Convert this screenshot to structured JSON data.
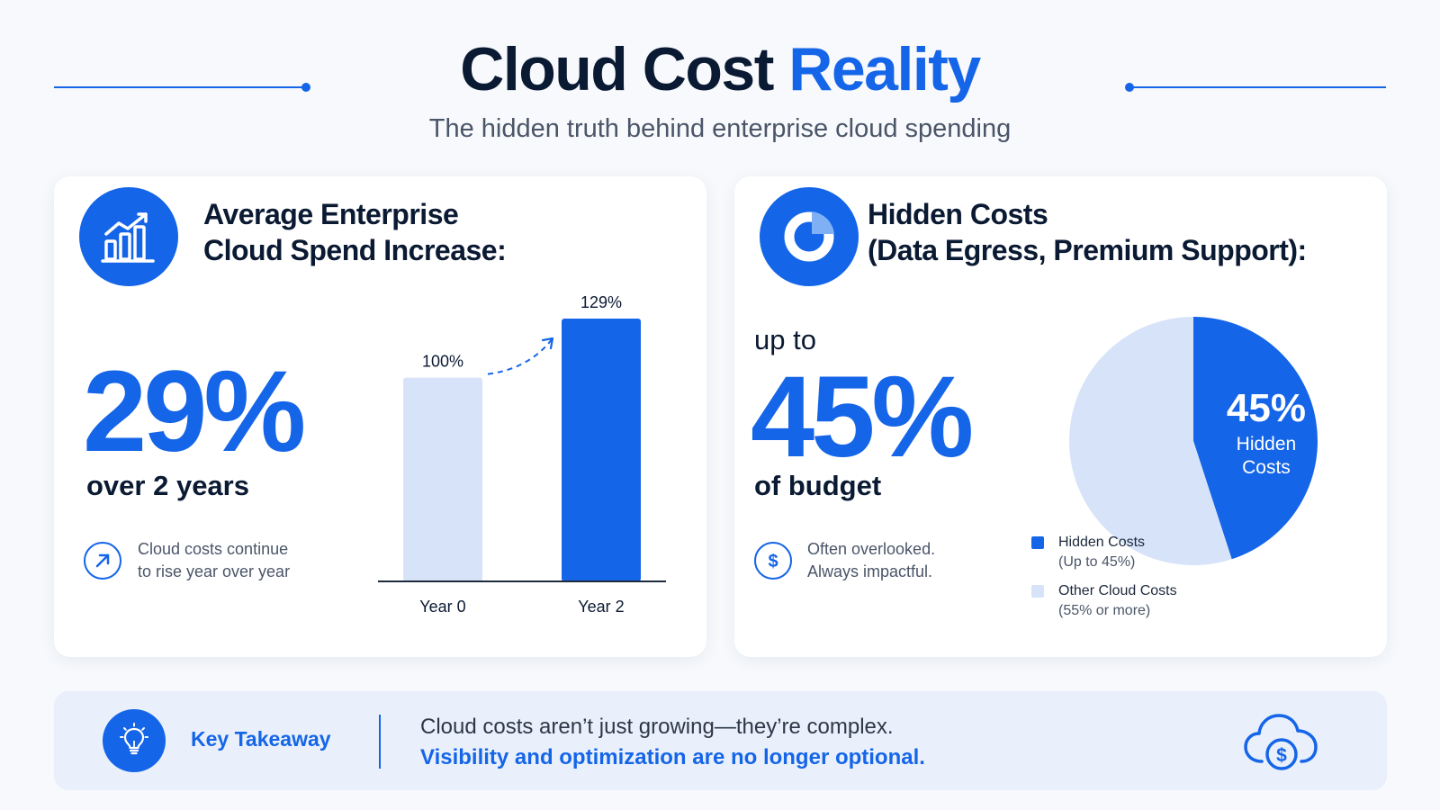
{
  "header": {
    "title_main": "Cloud Cost ",
    "title_accent": "Reality",
    "subtitle": "The hidden truth behind enterprise cloud spending"
  },
  "left_card": {
    "icon": "bar-chart-growth-icon",
    "title_line1": "Average Enterprise",
    "title_line2": "Cloud Spend Increase:",
    "big_value": "29%",
    "big_sub": "over 2 years",
    "note_icon": "arrow-up-right-icon",
    "note_line1": "Cloud costs continue",
    "note_line2": "to rise year over year"
  },
  "right_card": {
    "icon": "pie-chart-icon",
    "title_line1": "Hidden Costs",
    "title_line2": "(Data Egress, Premium Support):",
    "prefix": "up to",
    "big_value": "45%",
    "big_sub": "of budget",
    "note_icon": "dollar-icon",
    "note_line1": "Often overlooked.",
    "note_line2": "Always impactful."
  },
  "chart_data": [
    {
      "type": "bar",
      "categories": [
        "Year 0",
        "Year 2"
      ],
      "values": [
        100,
        129
      ],
      "data_labels": [
        "100%",
        "129%"
      ],
      "ylim": [
        0,
        129
      ],
      "colors": [
        "#d6e3f8",
        "#1565e8"
      ],
      "grid": false
    },
    {
      "type": "pie",
      "slices": [
        {
          "label": "Hidden Costs",
          "sublabel": "(Up to 45%)",
          "value": 45,
          "color": "#1565e8"
        },
        {
          "label": "Other Cloud Costs",
          "sublabel": "(55% or more)",
          "value": 55,
          "color": "#d6e3f8"
        }
      ],
      "slice_label_value": "45%",
      "slice_label_line1": "Hidden",
      "slice_label_line2": "Costs",
      "legend_position": "bottom"
    }
  ],
  "footer": {
    "icon": "lightbulb-icon",
    "label": "Key Takeaway",
    "line1": "Cloud costs aren’t just growing—they’re complex.",
    "line2": "Visibility and optimization are no longer optional.",
    "right_icon": "cloud-dollar-icon"
  },
  "colors": {
    "accent": "#1565e8",
    "light_accent": "#d6e3f8",
    "text_dark": "#0b1a33"
  }
}
